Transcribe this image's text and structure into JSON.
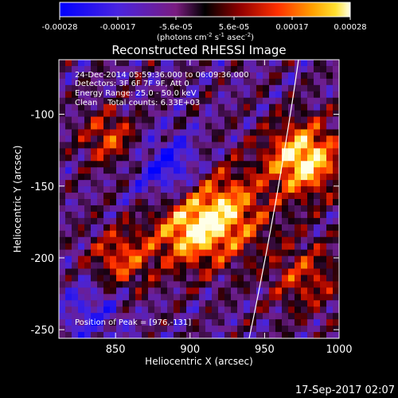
{
  "chart_data": {
    "type": "heatmap",
    "title": "Reconstructed RHESSI Image",
    "xlabel": "Heliocentric X (arcsec)",
    "ylabel": "Heliocentric Y (arcsec)",
    "xlim": [
      812,
      1000
    ],
    "ylim": [
      -256,
      -62
    ],
    "x_ticks": [
      850,
      900,
      950,
      1000
    ],
    "y_ticks": [
      -100,
      -150,
      -200,
      -250
    ],
    "colorbar": {
      "range": [
        -0.00028,
        0.00028
      ],
      "tick_labels": [
        "-0.00028",
        "-0.00017",
        "-5.6e-05",
        "5.6e-05",
        "0.00017",
        "0.00028"
      ],
      "unit_label": "(photons cm-2 s-1 asec-2)",
      "colormap": [
        "#0000ff",
        "#5a2ad8",
        "#8b1e8f",
        "#000000",
        "#a00000",
        "#ff3000",
        "#ff9a00",
        "#ffe030",
        "#ffffe0"
      ]
    },
    "annotations": [
      "24-Dec-2014 05:59:36.000 to 06:09:36.000",
      "Detectors: 3F 6F 7F 9F, Att 0",
      "Energy Range: 25.0 - 50.0 keV",
      "Clean    Total counts: 6.33E+03"
    ],
    "peak_label": "Position of Peak = [976,-131]",
    "peak": [
      976,
      -131
    ],
    "limb": "white arc"
  },
  "footer_timestamp": "17-Sep-2017 02:07"
}
